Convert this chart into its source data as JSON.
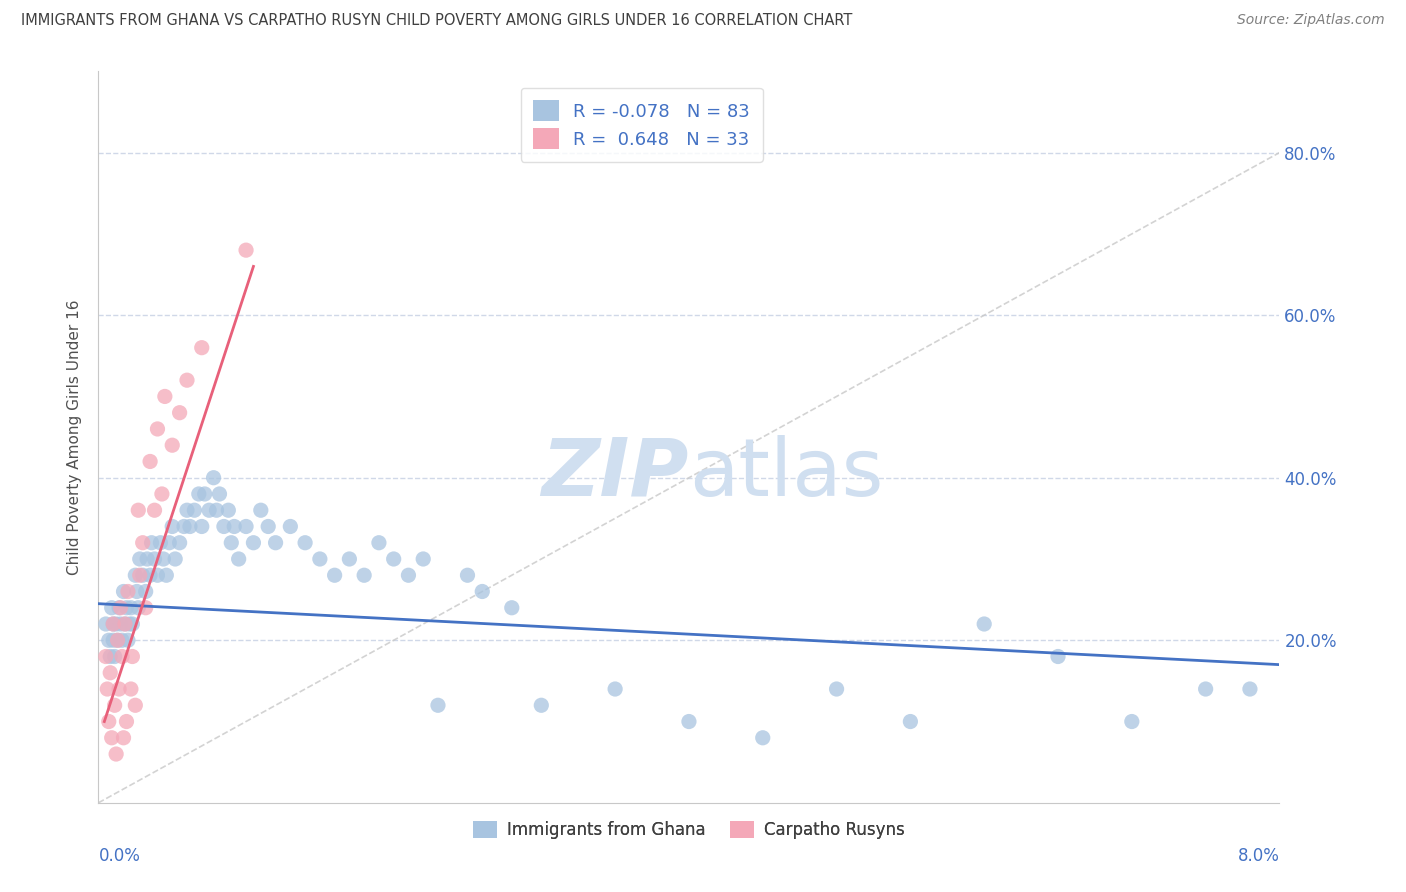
{
  "title": "IMMIGRANTS FROM GHANA VS CARPATHO RUSYN CHILD POVERTY AMONG GIRLS UNDER 16 CORRELATION CHART",
  "source": "Source: ZipAtlas.com",
  "ylabel": "Child Poverty Among Girls Under 16",
  "x_min": 0.0,
  "x_max": 8.0,
  "y_min": 0.0,
  "y_max": 90.0,
  "yticks": [
    20.0,
    40.0,
    60.0,
    80.0
  ],
  "ytick_labels": [
    "20.0%",
    "40.0%",
    "60.0%",
    "80.0%"
  ],
  "legend_ghana_r": "-0.078",
  "legend_ghana_n": "83",
  "legend_rusyn_r": "0.648",
  "legend_rusyn_n": "33",
  "ghana_color": "#a8c4e0",
  "rusyn_color": "#f4a8b8",
  "ghana_line_color": "#4472c4",
  "rusyn_line_color": "#e8607a",
  "diagonal_color": "#c8c8c8",
  "grid_color": "#d0d8e8",
  "title_color": "#404040",
  "axis_label_color": "#4472c4",
  "watermark_color": "#d0dff0",
  "ghana_points": [
    [
      0.05,
      22
    ],
    [
      0.07,
      20
    ],
    [
      0.08,
      18
    ],
    [
      0.09,
      24
    ],
    [
      0.1,
      22
    ],
    [
      0.1,
      20
    ],
    [
      0.11,
      18
    ],
    [
      0.12,
      22
    ],
    [
      0.13,
      20
    ],
    [
      0.14,
      24
    ],
    [
      0.15,
      22
    ],
    [
      0.16,
      20
    ],
    [
      0.17,
      26
    ],
    [
      0.18,
      22
    ],
    [
      0.19,
      24
    ],
    [
      0.2,
      20
    ],
    [
      0.21,
      22
    ],
    [
      0.22,
      24
    ],
    [
      0.23,
      22
    ],
    [
      0.25,
      28
    ],
    [
      0.26,
      26
    ],
    [
      0.27,
      24
    ],
    [
      0.28,
      30
    ],
    [
      0.3,
      28
    ],
    [
      0.32,
      26
    ],
    [
      0.33,
      30
    ],
    [
      0.35,
      28
    ],
    [
      0.36,
      32
    ],
    [
      0.38,
      30
    ],
    [
      0.4,
      28
    ],
    [
      0.42,
      32
    ],
    [
      0.44,
      30
    ],
    [
      0.46,
      28
    ],
    [
      0.48,
      32
    ],
    [
      0.5,
      34
    ],
    [
      0.52,
      30
    ],
    [
      0.55,
      32
    ],
    [
      0.58,
      34
    ],
    [
      0.6,
      36
    ],
    [
      0.62,
      34
    ],
    [
      0.65,
      36
    ],
    [
      0.68,
      38
    ],
    [
      0.7,
      34
    ],
    [
      0.72,
      38
    ],
    [
      0.75,
      36
    ],
    [
      0.78,
      40
    ],
    [
      0.8,
      36
    ],
    [
      0.82,
      38
    ],
    [
      0.85,
      34
    ],
    [
      0.88,
      36
    ],
    [
      0.9,
      32
    ],
    [
      0.92,
      34
    ],
    [
      0.95,
      30
    ],
    [
      1.0,
      34
    ],
    [
      1.05,
      32
    ],
    [
      1.1,
      36
    ],
    [
      1.15,
      34
    ],
    [
      1.2,
      32
    ],
    [
      1.3,
      34
    ],
    [
      1.4,
      32
    ],
    [
      1.5,
      30
    ],
    [
      1.6,
      28
    ],
    [
      1.7,
      30
    ],
    [
      1.8,
      28
    ],
    [
      1.9,
      32
    ],
    [
      2.0,
      30
    ],
    [
      2.1,
      28
    ],
    [
      2.2,
      30
    ],
    [
      2.3,
      12
    ],
    [
      2.5,
      28
    ],
    [
      2.6,
      26
    ],
    [
      2.8,
      24
    ],
    [
      3.0,
      12
    ],
    [
      3.5,
      14
    ],
    [
      4.0,
      10
    ],
    [
      4.5,
      8
    ],
    [
      5.0,
      14
    ],
    [
      5.5,
      10
    ],
    [
      6.0,
      22
    ],
    [
      6.5,
      18
    ],
    [
      7.0,
      10
    ],
    [
      7.5,
      14
    ],
    [
      7.8,
      14
    ]
  ],
  "rusyn_points": [
    [
      0.05,
      18
    ],
    [
      0.06,
      14
    ],
    [
      0.07,
      10
    ],
    [
      0.08,
      16
    ],
    [
      0.09,
      8
    ],
    [
      0.1,
      22
    ],
    [
      0.11,
      12
    ],
    [
      0.12,
      6
    ],
    [
      0.13,
      20
    ],
    [
      0.14,
      14
    ],
    [
      0.15,
      24
    ],
    [
      0.16,
      18
    ],
    [
      0.17,
      8
    ],
    [
      0.18,
      22
    ],
    [
      0.19,
      10
    ],
    [
      0.2,
      26
    ],
    [
      0.22,
      14
    ],
    [
      0.23,
      18
    ],
    [
      0.25,
      12
    ],
    [
      0.27,
      36
    ],
    [
      0.28,
      28
    ],
    [
      0.3,
      32
    ],
    [
      0.32,
      24
    ],
    [
      0.35,
      42
    ],
    [
      0.38,
      36
    ],
    [
      0.4,
      46
    ],
    [
      0.43,
      38
    ],
    [
      0.45,
      50
    ],
    [
      0.5,
      44
    ],
    [
      0.55,
      48
    ],
    [
      0.6,
      52
    ],
    [
      0.7,
      56
    ],
    [
      1.0,
      68
    ]
  ],
  "ghana_trend_x": [
    0.0,
    8.0
  ],
  "ghana_trend_y": [
    24.5,
    17.0
  ],
  "rusyn_trend_x": [
    0.04,
    1.05
  ],
  "rusyn_trend_y": [
    10.0,
    66.0
  ]
}
